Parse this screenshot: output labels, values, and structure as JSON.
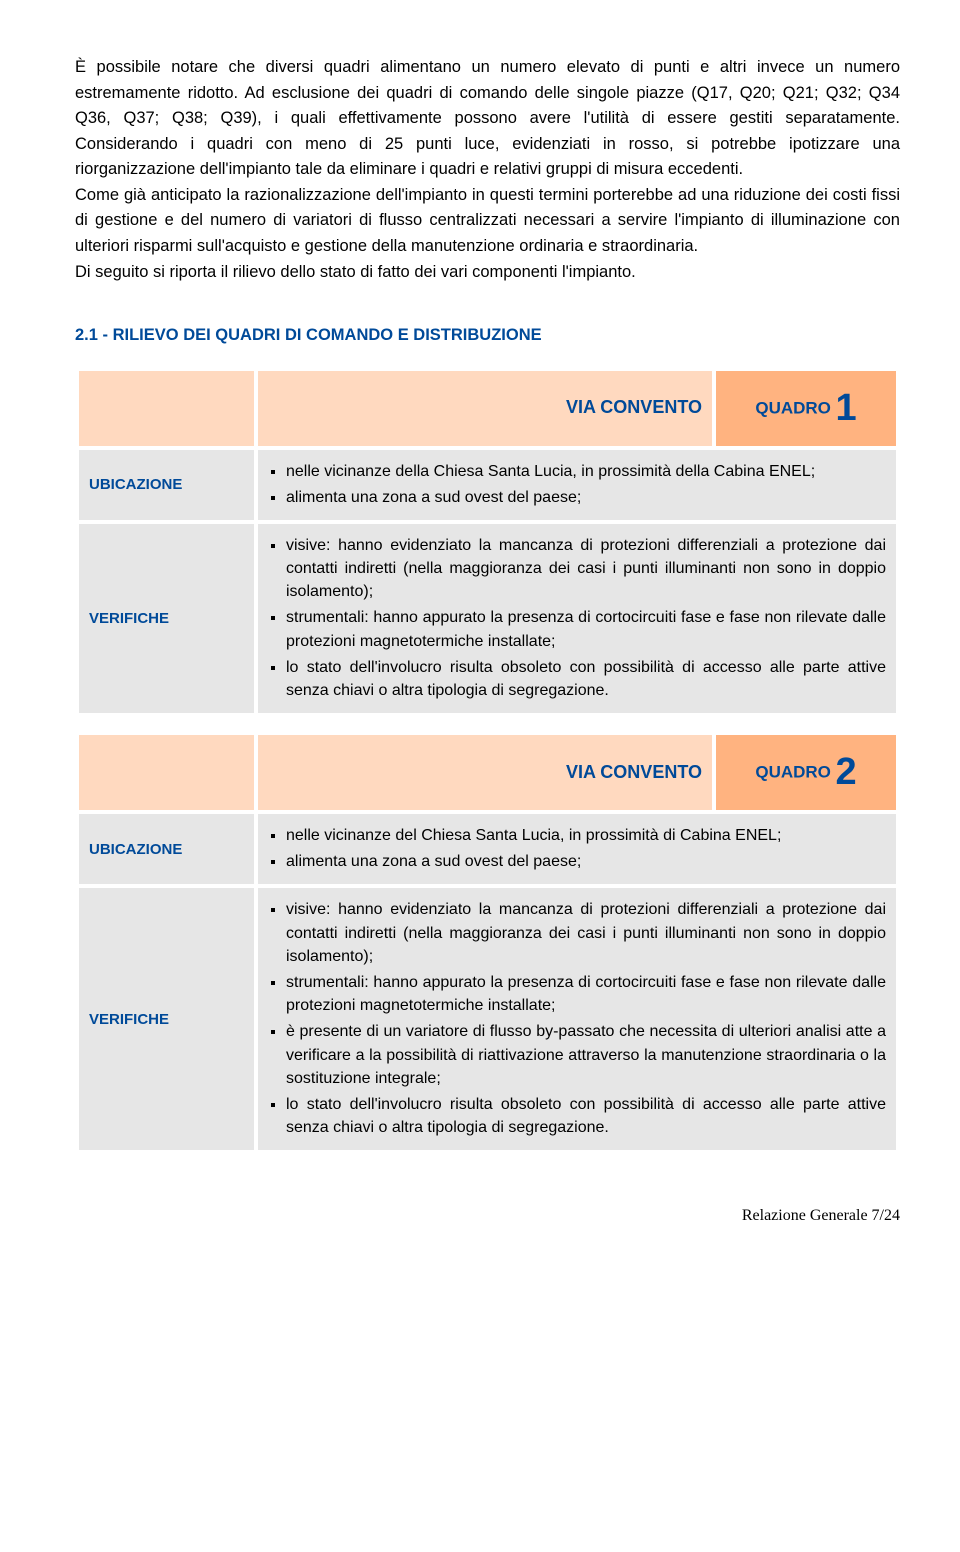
{
  "body_paragraphs": [
    "È possibile notare che diversi quadri alimentano un numero elevato di punti e altri invece un numero estremamente ridotto. Ad esclusione dei quadri di comando delle singole piazze (Q17, Q20; Q21; Q32; Q34 Q36, Q37; Q38; Q39), i quali effettivamente possono avere l'utilità di essere gestiti separatamente. Considerando i quadri con meno di 25 punti luce, evidenziati in rosso, si potrebbe ipotizzare una riorganizzazione dell'impianto tale da eliminare i quadri e relativi gruppi di misura eccedenti.",
    "Come già anticipato la razionalizzazione dell'impianto in questi termini porterebbe ad una riduzione dei costi fissi di gestione  e  del numero di variatori di flusso centralizzati necessari a servire l'impianto di illuminazione con ulteriori risparmi sull'acquisto e  gestione della manutenzione ordinaria e straordinaria.",
    "Di seguito si riporta  il rilievo  dello stato di fatto dei vari componenti l'impianto."
  ],
  "section_heading": "2.1 - RILIEVO DEI QUADRI DI COMANDO E DISTRIBUZIONE",
  "labels": {
    "ubicazione": "UBICAZIONE",
    "verifiche": "VERIFICHE",
    "quadro": "QUADRO"
  },
  "panels": [
    {
      "via": "VIA CONVENTO",
      "num": "1",
      "ubicazione": [
        "nelle vicinanze della Chiesa Santa Lucia, in prossimità della Cabina ENEL;",
        "alimenta una zona a sud ovest del paese;"
      ],
      "verifiche": [
        "visive: hanno evidenziato la mancanza di protezioni differenziali a protezione dai contatti indiretti (nella maggioranza dei casi i punti illuminanti non sono in doppio isolamento);",
        "strumentali: hanno appurato la presenza di cortocircuiti fase e fase non rilevate dalle protezioni magnetotermiche installate;",
        "lo stato dell'involucro risulta obsoleto con possibilità di accesso alle parte attive senza chiavi o altra tipologia di segregazione."
      ]
    },
    {
      "via": "VIA CONVENTO",
      "num": "2",
      "ubicazione": [
        "nelle vicinanze del Chiesa  Santa Lucia, in prossimità di Cabina ENEL;",
        "alimenta una zona a sud ovest del paese;"
      ],
      "verifiche": [
        "visive: hanno evidenziato la mancanza di protezioni differenziali a protezione dai contatti indiretti (nella maggioranza dei casi i punti illuminanti non sono in doppio isolamento);",
        "strumentali: hanno appurato la presenza di cortocircuiti fase e fase non rilevate dalle protezioni magnetotermiche installate;",
        "è presente di un variatore di flusso by-passato che necessita di ulteriori analisi atte a verificare a la possibilità di riattivazione attraverso la manutenzione straordinaria o la sostituzione integrale;",
        "lo stato dell'involucro risulta obsoleto con possibilità di accesso alle parte attive senza chiavi o altra tipologia di segregazione."
      ]
    }
  ],
  "footer": "Relazione Generale   7/24",
  "colors": {
    "heading": "#004a99",
    "header_light": "#ffd9bf",
    "header_dark": "#ffb380",
    "cell_grey": "#e6e6e6"
  }
}
